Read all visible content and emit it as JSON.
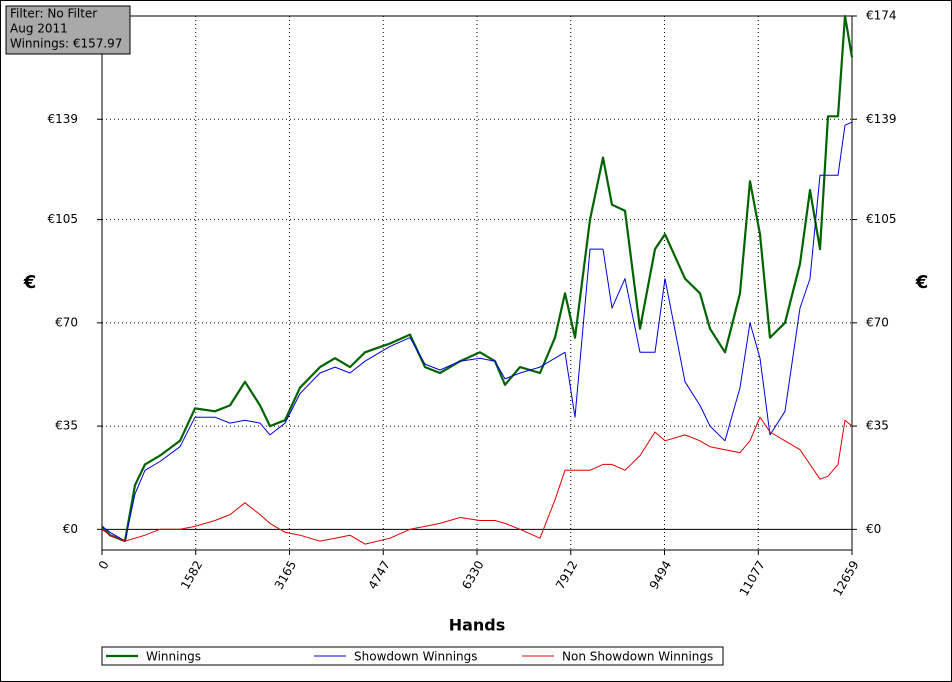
{
  "chart_data": {
    "type": "line",
    "info_lines": [
      "Filter: No Filter",
      "Aug 2011",
      "Winnings: €157.97"
    ],
    "x_label": "Hands",
    "y_label": "€",
    "y2_label": "€",
    "xlim": [
      0,
      12659
    ],
    "xticks": [
      0,
      1582,
      3165,
      4747,
      6330,
      7912,
      9494,
      11077,
      12659
    ],
    "ylim": [
      -7,
      174
    ],
    "yticks": [
      {
        "value": 0,
        "label": "€0"
      },
      {
        "value": 35,
        "label": "€35"
      },
      {
        "value": 70,
        "label": "€70"
      },
      {
        "value": 105,
        "label": "€105"
      },
      {
        "value": 139,
        "label": "€139"
      },
      {
        "value": 174,
        "label": "€174"
      }
    ],
    "grid": true,
    "legend": "bottom",
    "x": [
      0,
      135,
      388,
      557,
      726,
      979,
      1317,
      1570,
      1908,
      2161,
      2414,
      2667,
      2836,
      3089,
      3342,
      3679,
      3933,
      4186,
      4439,
      4861,
      5199,
      5452,
      5705,
      6043,
      6380,
      6633,
      6802,
      7055,
      7393,
      7646,
      7815,
      7984,
      8237,
      8456,
      8608,
      8828,
      9081,
      9334,
      9503,
      9841,
      10094,
      10262,
      10516,
      10769,
      10938,
      11106,
      11275,
      11528,
      11782,
      11950,
      12119,
      12254,
      12423,
      12541,
      12659
    ],
    "series": [
      {
        "name": "Winnings",
        "color": "#006400",
        "width": 2.2,
        "values": [
          1,
          -2,
          -4,
          15,
          22,
          25,
          30,
          41,
          40,
          42,
          50,
          42,
          35,
          37,
          48,
          55,
          58,
          55,
          60,
          63,
          66,
          55,
          53,
          57,
          60,
          57,
          49,
          55,
          53,
          65,
          80,
          65,
          105,
          126,
          110,
          108,
          68,
          95,
          100,
          85,
          80,
          68,
          60,
          80,
          118,
          100,
          65,
          70,
          90,
          115,
          95,
          140,
          140,
          174,
          160
        ]
      },
      {
        "name": "Showdown Winnings",
        "color": "#0000dd",
        "width": 1,
        "values": [
          1,
          -1,
          -4,
          12,
          20,
          23,
          28,
          38,
          38,
          36,
          37,
          36,
          32,
          36,
          46,
          53,
          55,
          53,
          57,
          62,
          65,
          56,
          54,
          57,
          58,
          57,
          51,
          53,
          55,
          58,
          60,
          38,
          95,
          95,
          75,
          85,
          60,
          60,
          85,
          50,
          42,
          35,
          30,
          48,
          70,
          58,
          32,
          40,
          75,
          85,
          120,
          120,
          120,
          137,
          138
        ]
      },
      {
        "name": "Non Showdown Winnings",
        "color": "#dd0000",
        "width": 1,
        "values": [
          0,
          -2,
          -4,
          -3,
          -2,
          0,
          0,
          1,
          3,
          5,
          9,
          5,
          2,
          -1,
          -2,
          -4,
          -3,
          -2,
          -5,
          -3,
          0,
          1,
          2,
          4,
          3,
          3,
          2,
          0,
          -3,
          10,
          20,
          20,
          20,
          22,
          22,
          20,
          25,
          33,
          30,
          32,
          30,
          28,
          27,
          26,
          30,
          38,
          33,
          30,
          27,
          22,
          17,
          18,
          22,
          37,
          35
        ]
      }
    ]
  }
}
